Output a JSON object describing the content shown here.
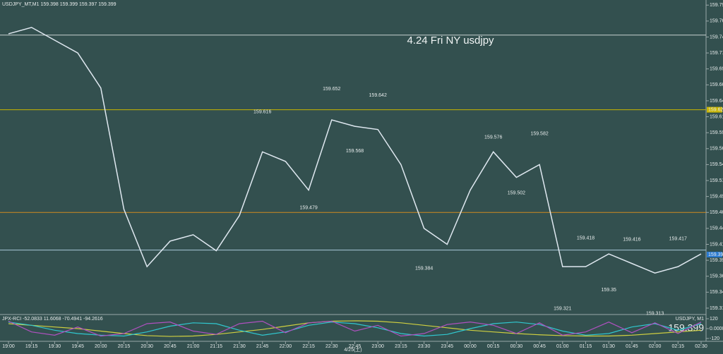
{
  "header": {
    "symbol_line": "USDJPY_MT,M1  159.398 159.399 159.397 159.399",
    "indicator_line": "JPX-RCI -52.0833 11.6068 -70.4941 -94.2616",
    "symbol_tag": "USDJPY, M1",
    "last_big": "159.399"
  },
  "chart_data": [
    {
      "type": "line",
      "title": "4.24 Fri NY usdjpy",
      "categories": [
        "19:00",
        "19:15",
        "19:30",
        "19:45",
        "20:00",
        "20:15",
        "20:30",
        "20:45",
        "21:00",
        "21:15",
        "21:30",
        "21:45",
        "22:00",
        "22:15",
        "22:30",
        "22:45",
        "23:00",
        "23:15",
        "23:30",
        "23:45",
        "00:00",
        "00:15",
        "00:30",
        "00:45",
        "01:00",
        "01:15",
        "01:30",
        "01:45",
        "02:00",
        "02:15",
        "02:30"
      ],
      "date_label": "4/25(土)",
      "values": [
        159.745,
        159.755,
        159.735,
        159.715,
        159.66,
        159.47,
        159.38,
        159.42,
        159.43,
        159.405,
        159.46,
        159.56,
        159.545,
        159.5,
        159.61,
        159.6,
        159.595,
        159.54,
        159.44,
        159.415,
        159.5,
        159.56,
        159.52,
        159.54,
        159.38,
        159.38,
        159.4,
        159.385,
        159.37,
        159.38,
        159.4
      ],
      "color": "#dfe8f0",
      "ylim": [
        159.305,
        159.798
      ],
      "yticks": [
        159.315,
        {
          "value": 159.34,
          "label": "159.340"
        },
        159.365,
        {
          "value": 159.39,
          "label": "159.390"
        },
        159.415,
        {
          "value": 159.44,
          "label": "159.440"
        },
        159.465,
        {
          "value": 159.49,
          "label": "159.490"
        },
        159.515,
        {
          "value": 159.54,
          "label": "159.540"
        },
        159.565,
        {
          "value": 159.59,
          "label": "159.590"
        },
        159.615,
        {
          "value": 159.64,
          "label": "159.640"
        },
        159.665,
        {
          "value": 159.69,
          "label": "159.690"
        },
        159.715,
        {
          "value": 159.74,
          "label": "159.740"
        },
        159.765,
        {
          "value": 159.79,
          "label": "159.790"
        }
      ],
      "levels": [
        {
          "value": 159.743,
          "color": "#c8d0d0",
          "tag": false
        },
        {
          "value": 159.406,
          "color": "#a8c8d8",
          "tag": false
        },
        {
          "value": 159.626,
          "color": "#c8b400",
          "tag": true
        },
        {
          "value": 159.465,
          "color": "#d08a20",
          "tag": false
        }
      ],
      "last_price": 159.399,
      "annotations": [
        {
          "at": "21:45",
          "value": 159.616
        },
        {
          "at": "22:30",
          "value": 159.652
        },
        {
          "at": "23:00",
          "value": 159.642
        },
        {
          "at": "22:45",
          "value": 159.568
        },
        {
          "at": "22:15",
          "value": 159.479
        },
        {
          "at": "23:30",
          "value": 159.384
        },
        {
          "at": "00:15",
          "value": 159.576
        },
        {
          "at": "00:45",
          "value": 159.582
        },
        {
          "at": "00:30",
          "value": 159.502
        },
        {
          "at": "01:15",
          "value": 159.418
        },
        {
          "at": "01:00",
          "value": 159.321
        },
        {
          "at": "01:30",
          "value": 159.35
        },
        {
          "at": "01:45",
          "value": 159.416
        },
        {
          "at": "02:00",
          "value": 159.313
        },
        {
          "at": "02:15",
          "value": 159.417
        }
      ]
    },
    {
      "type": "line",
      "ylim": [
        -120,
        120
      ],
      "yticks": [
        120,
        {
          "value": 0,
          "label": "0.00000"
        },
        -120
      ],
      "series": [
        {
          "color": "#d0d040",
          "values": [
            60,
            40,
            20,
            0,
            -30,
            -60,
            -85,
            -95,
            -90,
            -70,
            -40,
            -10,
            30,
            70,
            90,
            95,
            90,
            70,
            40,
            10,
            -20,
            -40,
            -60,
            -75,
            -85,
            -90,
            -90,
            -80,
            -60,
            -40,
            -20
          ]
        },
        {
          "color": "#30c8d0",
          "values": [
            80,
            40,
            -20,
            -60,
            -80,
            -90,
            -40,
            30,
            70,
            60,
            -20,
            -80,
            -40,
            40,
            80,
            60,
            10,
            -60,
            -90,
            -70,
            0,
            60,
            80,
            50,
            -30,
            -80,
            -60,
            20,
            60,
            -20,
            60
          ]
        },
        {
          "color": "#b050c0",
          "values": [
            90,
            -40,
            -80,
            20,
            -90,
            -60,
            60,
            80,
            -30,
            -70,
            60,
            90,
            -50,
            70,
            90,
            -30,
            40,
            -90,
            -60,
            50,
            80,
            40,
            -60,
            70,
            -80,
            -40,
            80,
            -50,
            70,
            -60,
            80
          ]
        }
      ]
    }
  ]
}
